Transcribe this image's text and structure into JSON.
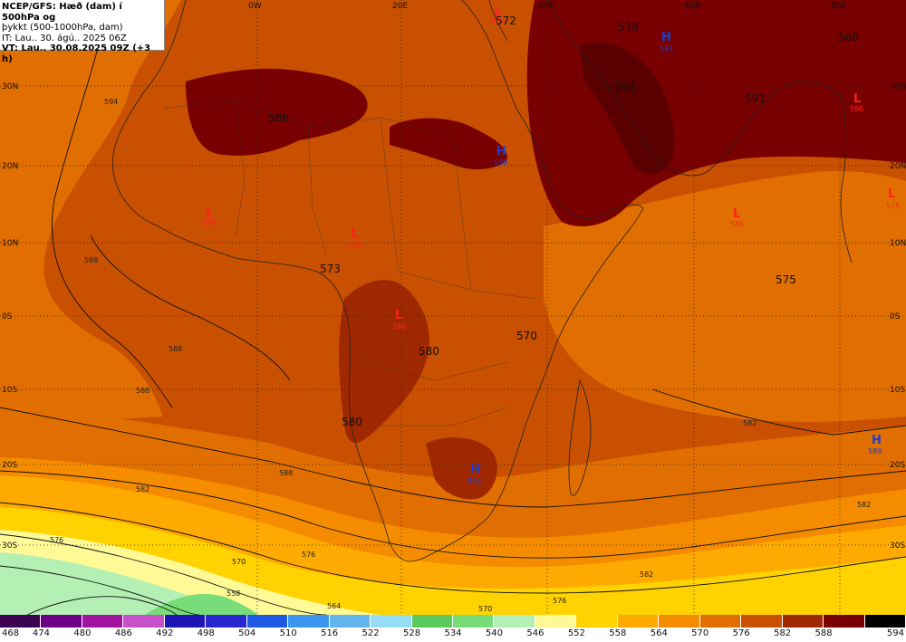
{
  "header": {
    "line1": "NCEP/GFS: Hæð (dam) í 500hPa og",
    "line2": "þykkt (500-1000hPa, dam)",
    "line3": "IT: Lau.. 30. ágú.. 2025 06Z",
    "line4": "VT: Lau.. 30.08.2025 09Z (+3 h)"
  },
  "lon_labels": [
    "0W",
    "20E",
    "40E",
    "60E",
    "80E"
  ],
  "lat_labels_left": [
    "30N",
    "20N",
    "10N",
    "0S",
    "10S",
    "20S",
    "30S"
  ],
  "lat_labels_right": [
    "30N",
    "20N",
    "10N",
    "0S",
    "10S",
    "20S",
    "30S"
  ],
  "field_values": [
    "572",
    "578",
    "568",
    "591",
    "591",
    "586",
    "573",
    "575",
    "580",
    "570",
    "580"
  ],
  "contour_values": [
    "594",
    "588",
    "588",
    "588",
    "588",
    "582",
    "582",
    "576",
    "576",
    "570",
    "570",
    "564",
    "558",
    "576",
    "582",
    "582"
  ],
  "pressure_centers": [
    {
      "type": "L",
      "value": "572"
    },
    {
      "type": "H",
      "value": "591"
    },
    {
      "type": "L",
      "value": "586"
    },
    {
      "type": "H",
      "value": "589"
    },
    {
      "type": "L",
      "value": "586"
    },
    {
      "type": "L",
      "value": "585"
    },
    {
      "type": "L",
      "value": "585"
    },
    {
      "type": "L",
      "value": "575"
    },
    {
      "type": "L",
      "value": "580"
    },
    {
      "type": "H",
      "value": "589"
    },
    {
      "type": "H",
      "value": "594"
    }
  ],
  "legend": {
    "values": [
      "468",
      "474",
      "480",
      "486",
      "492",
      "498",
      "504",
      "510",
      "516",
      "522",
      "528",
      "534",
      "540",
      "546",
      "552",
      "558",
      "564",
      "570",
      "576",
      "582",
      "588",
      "594"
    ],
    "colors": [
      "#3c0050",
      "#6e0087",
      "#a014a0",
      "#c850c8",
      "#1e14b4",
      "#2828d2",
      "#1e5ae6",
      "#3c96f0",
      "#64b4f0",
      "#96dcf5",
      "#5ac85a",
      "#78dc78",
      "#b4f0b4",
      "#fffa96",
      "#ffd200",
      "#ffaa00",
      "#f58c00",
      "#e16e00",
      "#c85000",
      "#a02800",
      "#780000",
      "#000000"
    ]
  },
  "colors": {
    "bg_fill": "#c85000",
    "deep": "#780000",
    "darker": "#a02800",
    "orange": "#e16e00",
    "light_orange": "#f58c00",
    "amber": "#ffaa00",
    "gold": "#ffd200",
    "pale_yellow": "#fffa96",
    "pale_green": "#b4f0b4",
    "green": "#78dc78"
  }
}
